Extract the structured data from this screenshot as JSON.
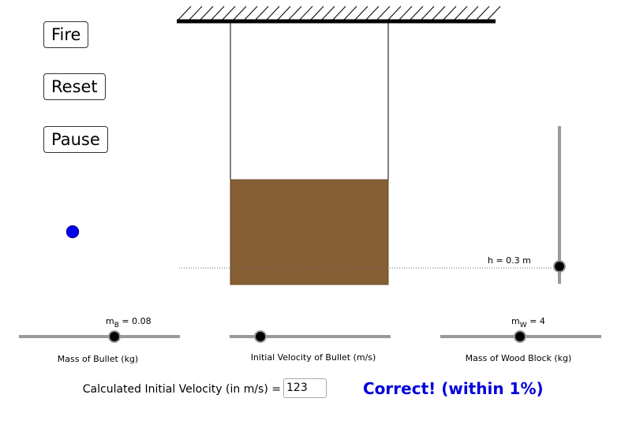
{
  "buttons": [
    "Fire",
    "Reset",
    "Pause"
  ],
  "sliders": [
    {
      "label": "Mass of Bullet (kg)",
      "symbol": "m",
      "subscript": "B",
      "value_text": " = 0.08"
    },
    {
      "label": "Initial Velocity of Bullet (m/s)"
    },
    {
      "label": "Mass of Wood Block (kg)",
      "symbol": "m",
      "subscript": "W",
      "value_text": " = 4"
    }
  ],
  "height_label": "h = 0.3 m",
  "answer": {
    "prompt": "Calculated Initial Velocity (in m/s) =",
    "input": "123",
    "feedback": "Correct! (within 1%)"
  }
}
